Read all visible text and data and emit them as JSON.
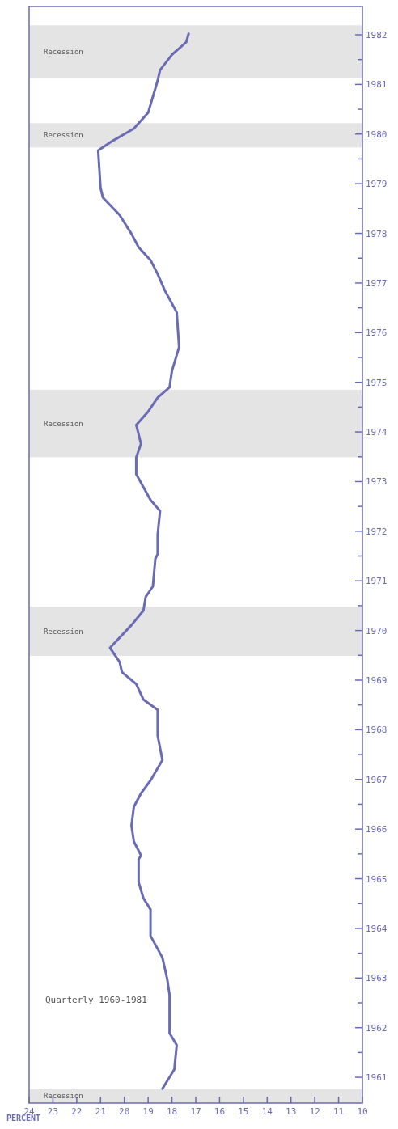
{
  "chart_data": {
    "type": "line",
    "title": "Quarterly 1960-1981",
    "xlabel": "PERCENT",
    "x": [
      18.4,
      17.9,
      17.8,
      18.1,
      18.1,
      18.2,
      18.4,
      18.9,
      18.9,
      18.9,
      19.2,
      19.4,
      19.4,
      19.3,
      19.6,
      19.7,
      19.6,
      19.3,
      18.9,
      18.4,
      18.6,
      18.6,
      18.6,
      19.2,
      19.5,
      20.1,
      20.2,
      20.6,
      19.7,
      19.2,
      19.1,
      18.8,
      18.7,
      18.6,
      18.6,
      18.5,
      18.9,
      19.5,
      19.5,
      19.3,
      19.5,
      19.0,
      18.6,
      18.1,
      18.0,
      17.7,
      17.8,
      18.3,
      18.6,
      18.9,
      19.4,
      19.7,
      20.2,
      20.9,
      21.0,
      21.1,
      20.5,
      19.6,
      19.0,
      18.6,
      18.5,
      18.0,
      17.4,
      17.3
    ],
    "series": [
      {
        "color": "#6b6bb5",
        "values": [
          1960.77,
          1961.16,
          1961.65,
          1961.89,
          1962.66,
          1962.98,
          1963.41,
          1963.85,
          1964.0,
          1964.38,
          1964.61,
          1964.93,
          1965.39,
          1965.47,
          1965.75,
          1966.07,
          1966.45,
          1966.72,
          1966.98,
          1967.39,
          1967.88,
          1968.02,
          1968.4,
          1968.61,
          1968.92,
          1969.16,
          1969.37,
          1969.65,
          1970.11,
          1970.4,
          1970.68,
          1970.89,
          1971.44,
          1971.54,
          1971.93,
          1972.41,
          1972.63,
          1973.15,
          1973.49,
          1973.76,
          1974.14,
          1974.41,
          1974.69,
          1974.9,
          1975.23,
          1975.71,
          1976.41,
          1976.85,
          1977.18,
          1977.46,
          1977.72,
          1977.99,
          1978.37,
          1978.72,
          1978.92,
          1979.67,
          1979.86,
          1980.11,
          1980.43,
          1981.08,
          1981.29,
          1981.6,
          1981.85,
          1982.02
        ]
      }
    ],
    "xlim": [
      24,
      10
    ],
    "xticks": [
      24,
      23,
      22,
      21,
      20,
      19,
      18,
      17,
      16,
      15,
      14,
      13,
      12,
      11,
      10
    ],
    "ylim": [
      1960.48,
      1982.57
    ],
    "yticks": [
      1961,
      {
        "value": 1961.5,
        "label": null
      },
      1962,
      {
        "value": 1962.5,
        "label": null
      },
      1963,
      {
        "value": 1963.5,
        "label": null
      },
      1964,
      {
        "value": 1964.5,
        "label": null
      },
      1965,
      {
        "value": 1965.5,
        "label": null
      },
      1966,
      {
        "value": 1966.5,
        "label": null
      },
      1967,
      {
        "value": 1967.5,
        "label": null
      },
      1968,
      {
        "value": 1968.5,
        "label": null
      },
      1969,
      {
        "value": 1969.5,
        "label": null
      },
      1970,
      {
        "value": 1970.5,
        "label": null
      },
      1971,
      {
        "value": 1971.5,
        "label": null
      },
      1972,
      {
        "value": 1972.5,
        "label": null
      },
      1973,
      {
        "value": 1973.5,
        "label": null
      },
      1974,
      {
        "value": 1974.5,
        "label": null
      },
      1975,
      {
        "value": 1975.5,
        "label": null
      },
      1976,
      {
        "value": 1976.5,
        "label": null
      },
      1977,
      {
        "value": 1977.5,
        "label": null
      },
      1978,
      {
        "value": 1978.5,
        "label": null
      },
      1979,
      {
        "value": 1979.5,
        "label": null
      },
      1980,
      {
        "value": 1980.5,
        "label": null
      },
      1981,
      {
        "value": 1981.5,
        "label": null
      },
      1982
    ],
    "bands": [
      {
        "axis": "y",
        "from": 1960.48,
        "to": 1960.76,
        "label": "Recession",
        "color": "#e4e4e4"
      },
      {
        "axis": "y",
        "from": 1969.49,
        "to": 1970.48,
        "label": "Recession",
        "color": "#e4e4e4"
      },
      {
        "axis": "y",
        "from": 1973.49,
        "to": 1974.85,
        "label": "Recession",
        "color": "#e4e4e4"
      },
      {
        "axis": "y",
        "from": 1979.73,
        "to": 1980.22,
        "label": "Recession",
        "color": "#e4e4e4"
      },
      {
        "axis": "y",
        "from": 1981.13,
        "to": 1982.19,
        "label": "Recession",
        "color": "#e4e4e4"
      }
    ],
    "line_style": "solid",
    "marker": "none"
  }
}
